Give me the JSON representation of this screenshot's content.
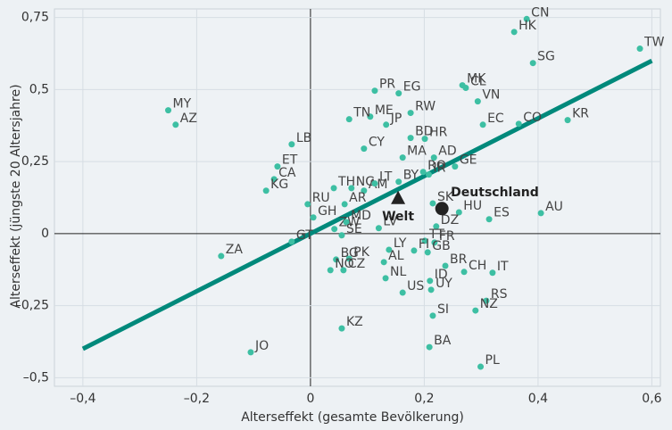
{
  "chart_data": {
    "type": "scatter",
    "x_label": "Alterseffekt (gesamte Bevölkerung)",
    "y_label": "Alterseffekt (jüngste 20 Altersjahre)",
    "xlim": [
      -0.45,
      0.615
    ],
    "ylim": [
      -0.53,
      0.78
    ],
    "xticks": [
      {
        "value": -0.4,
        "label": "–0,4"
      },
      {
        "value": -0.2,
        "label": "–0,2"
      },
      0,
      {
        "value": 0.2,
        "label": "0,2"
      },
      {
        "value": 0.4,
        "label": "0,4"
      },
      {
        "value": 0.6,
        "label": "0,6"
      }
    ],
    "yticks": [
      {
        "value": -0.5,
        "label": "–0,5"
      },
      {
        "value": -0.25,
        "label": "–0,25"
      },
      0,
      {
        "value": 0.25,
        "label": "0,25"
      },
      {
        "value": 0.5,
        "label": "0,5"
      },
      {
        "value": 0.75,
        "label": "0,75"
      }
    ],
    "grid": true,
    "color": "#3dbfa3",
    "point_labels": [
      "CN",
      "HK",
      "TW",
      "SG",
      "MK",
      "CL",
      "VN",
      "PR",
      "EG",
      "RW",
      "ME",
      "TN",
      "JP",
      "BD",
      "EC",
      "CO",
      "KR",
      "MY",
      "AZ",
      "LB",
      "CY",
      "MA",
      "HR",
      "AD",
      "ET",
      "CA",
      "GE",
      "BY",
      "RO",
      "IR",
      "NG",
      "TH",
      "AM",
      "LT",
      "KG",
      "SK",
      "AR",
      "RU",
      "HU",
      "ES",
      "AU",
      "GH",
      "ZW",
      "MD",
      "LV",
      "DZ",
      "TT",
      "ZA",
      "GT",
      "SE",
      "LY",
      "FR",
      "FI",
      "AL",
      "GB",
      "BR",
      "IT",
      "BG",
      "PK",
      "NO",
      "CZ",
      "ID",
      "CH",
      "NL",
      "RS",
      "UY",
      "US",
      "NZ",
      "SI",
      "KZ",
      "JO",
      "BA",
      "PL"
    ],
    "x": [
      0.38,
      0.358,
      0.579,
      0.391,
      0.267,
      0.273,
      0.294,
      0.113,
      0.155,
      0.176,
      0.105,
      0.068,
      0.133,
      0.176,
      0.303,
      0.366,
      0.452,
      -0.25,
      -0.237,
      -0.033,
      0.094,
      0.162,
      0.201,
      0.217,
      -0.058,
      -0.064,
      0.254,
      0.155,
      0.198,
      0.208,
      0.072,
      0.041,
      0.094,
      0.113,
      -0.078,
      0.215,
      0.06,
      -0.005,
      0.261,
      0.314,
      0.405,
      0.005,
      0.042,
      0.063,
      0.12,
      0.221,
      0.201,
      -0.157,
      -0.033,
      0.055,
      0.138,
      0.218,
      0.182,
      0.129,
      0.206,
      0.237,
      0.32,
      0.045,
      0.068,
      0.035,
      0.058,
      0.21,
      0.27,
      0.132,
      0.309,
      0.212,
      0.162,
      0.29,
      0.215,
      0.055,
      -0.105,
      0.209,
      0.299
    ],
    "values": [
      0.745,
      0.7,
      0.642,
      0.592,
      0.515,
      0.506,
      0.459,
      0.496,
      0.487,
      0.419,
      0.406,
      0.397,
      0.378,
      0.332,
      0.378,
      0.381,
      0.394,
      0.428,
      0.378,
      0.31,
      0.295,
      0.264,
      0.329,
      0.264,
      0.233,
      0.189,
      0.233,
      0.18,
      0.214,
      0.205,
      0.158,
      0.158,
      0.149,
      0.174,
      0.149,
      0.105,
      0.102,
      0.102,
      0.074,
      0.05,
      0.071,
      0.056,
      0.016,
      0.04,
      0.019,
      0.025,
      -0.025,
      -0.078,
      -0.028,
      -0.006,
      -0.056,
      -0.031,
      -0.059,
      -0.099,
      -0.065,
      -0.112,
      -0.136,
      -0.09,
      -0.087,
      -0.127,
      -0.127,
      -0.164,
      -0.133,
      -0.155,
      -0.233,
      -0.195,
      -0.205,
      -0.267,
      -0.285,
      -0.329,
      -0.412,
      -0.394,
      -0.462
    ],
    "highlights": [
      {
        "name": "Welt",
        "marker": "triangle",
        "x": 0.154,
        "y": 0.121
      },
      {
        "name": "Deutschland",
        "marker": "circle",
        "x": 0.231,
        "y": 0.087
      }
    ],
    "trend_line": {
      "color": "#00897b",
      "x": [
        -0.4,
        0.6
      ],
      "values": [
        -0.4,
        0.6
      ]
    }
  }
}
